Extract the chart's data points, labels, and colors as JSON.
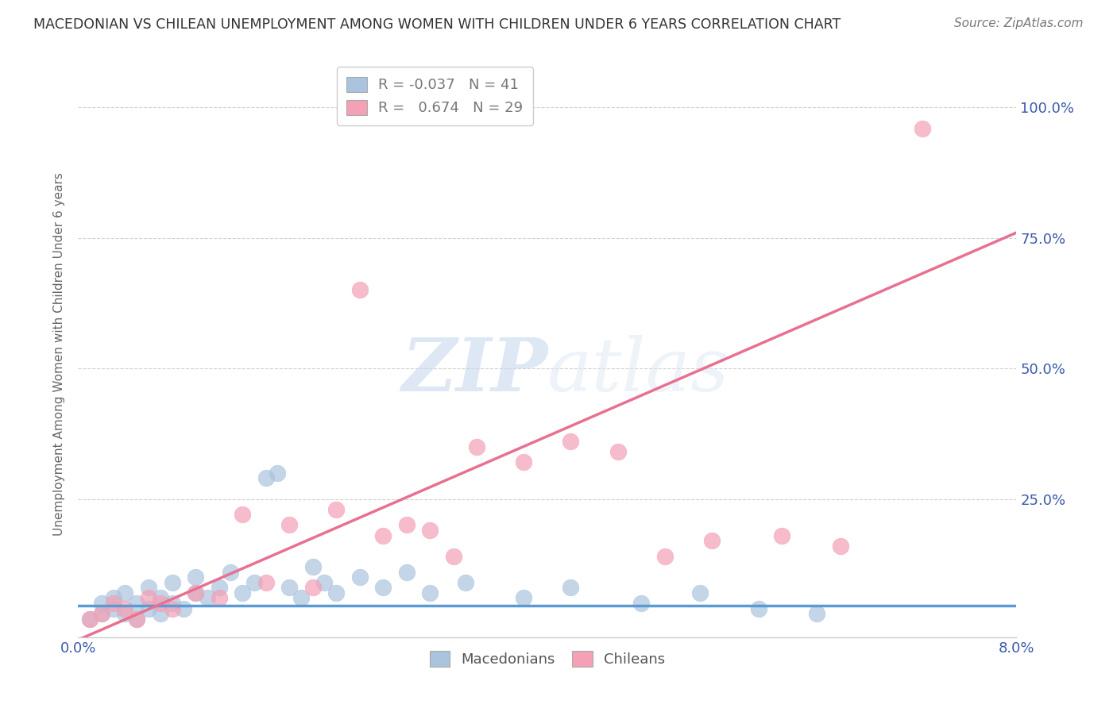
{
  "title": "MACEDONIAN VS CHILEAN UNEMPLOYMENT AMONG WOMEN WITH CHILDREN UNDER 6 YEARS CORRELATION CHART",
  "source": "Source: ZipAtlas.com",
  "ylabel": "Unemployment Among Women with Children Under 6 years",
  "ytick_labels": [
    "100.0%",
    "75.0%",
    "50.0%",
    "25.0%"
  ],
  "ytick_values": [
    1.0,
    0.75,
    0.5,
    0.25
  ],
  "xlim": [
    0.0,
    0.08
  ],
  "ylim": [
    -0.015,
    1.07
  ],
  "mac_R": -0.037,
  "mac_N": 41,
  "chil_R": 0.674,
  "chil_N": 29,
  "mac_color": "#aac4de",
  "chil_color": "#f4a0b5",
  "mac_line_color": "#5b9bd5",
  "chil_line_color": "#e87090",
  "grid_color": "#cccccc",
  "background_color": "#ffffff",
  "mac_line_slope": 0.0,
  "mac_line_intercept": 0.045,
  "chil_line_x0": 0.0,
  "chil_line_y0": -0.02,
  "chil_line_x1": 0.08,
  "chil_line_y1": 0.76,
  "macedonians_scatter_x": [
    0.001,
    0.002,
    0.002,
    0.003,
    0.003,
    0.004,
    0.004,
    0.005,
    0.005,
    0.006,
    0.006,
    0.007,
    0.007,
    0.008,
    0.008,
    0.009,
    0.01,
    0.01,
    0.011,
    0.012,
    0.013,
    0.014,
    0.015,
    0.016,
    0.017,
    0.018,
    0.019,
    0.02,
    0.021,
    0.022,
    0.024,
    0.026,
    0.028,
    0.03,
    0.033,
    0.038,
    0.042,
    0.048,
    0.053,
    0.058,
    0.063
  ],
  "macedonians_scatter_y": [
    0.02,
    0.03,
    0.05,
    0.04,
    0.06,
    0.03,
    0.07,
    0.05,
    0.02,
    0.04,
    0.08,
    0.03,
    0.06,
    0.05,
    0.09,
    0.04,
    0.07,
    0.1,
    0.06,
    0.08,
    0.11,
    0.07,
    0.09,
    0.29,
    0.3,
    0.08,
    0.06,
    0.12,
    0.09,
    0.07,
    0.1,
    0.08,
    0.11,
    0.07,
    0.09,
    0.06,
    0.08,
    0.05,
    0.07,
    0.04,
    0.03
  ],
  "chileans_scatter_x": [
    0.001,
    0.002,
    0.003,
    0.004,
    0.005,
    0.006,
    0.007,
    0.008,
    0.01,
    0.012,
    0.014,
    0.016,
    0.018,
    0.02,
    0.022,
    0.024,
    0.026,
    0.028,
    0.03,
    0.032,
    0.034,
    0.038,
    0.042,
    0.046,
    0.05,
    0.054,
    0.06,
    0.065,
    0.072
  ],
  "chileans_scatter_y": [
    0.02,
    0.03,
    0.05,
    0.04,
    0.02,
    0.06,
    0.05,
    0.04,
    0.07,
    0.06,
    0.22,
    0.09,
    0.2,
    0.08,
    0.23,
    0.65,
    0.18,
    0.2,
    0.19,
    0.14,
    0.35,
    0.32,
    0.36,
    0.34,
    0.14,
    0.17,
    0.18,
    0.16,
    0.96
  ]
}
